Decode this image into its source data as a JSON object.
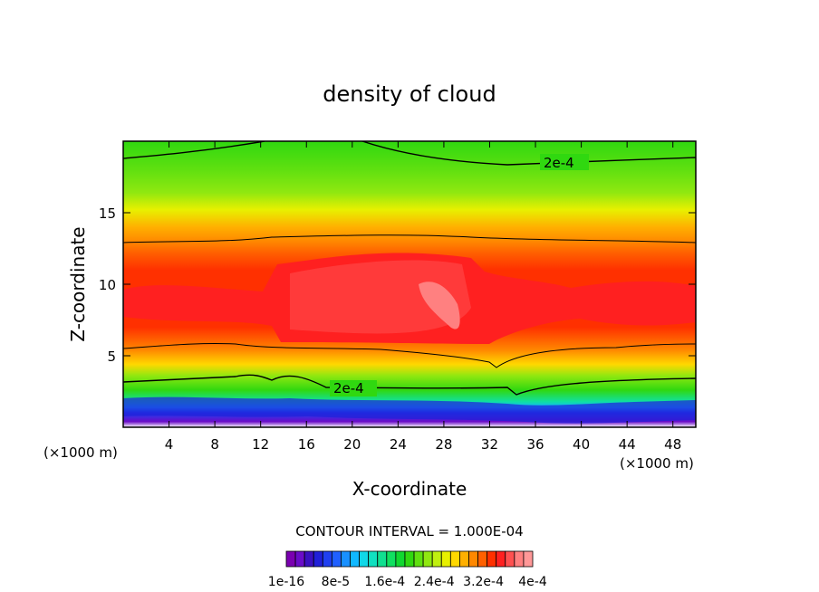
{
  "chart_data": {
    "type": "heatmap",
    "title": "density of cloud",
    "xlabel": "X-coordinate",
    "ylabel": "Z-coordinate",
    "x_unit": "(×1000 m)",
    "z_unit": "(×1000 m)",
    "xlim": [
      0,
      50
    ],
    "ylim": [
      0,
      20
    ],
    "x_ticks": [
      4,
      8,
      12,
      16,
      20,
      24,
      28,
      32,
      36,
      40,
      44,
      48
    ],
    "y_ticks": [
      5,
      10,
      15
    ],
    "contour_interval_text": "CONTOUR INTERVAL = 1.000E-04",
    "contour_line_label": "2e-4",
    "colorbar": {
      "colors": [
        "#7a00b0",
        "#6a0cc8",
        "#3a10c0",
        "#2020d8",
        "#2040f0",
        "#2060ff",
        "#1890ff",
        "#10b8ff",
        "#10d8e8",
        "#10e0c0",
        "#10e090",
        "#10e060",
        "#10d830",
        "#30d810",
        "#60e010",
        "#90e810",
        "#c0f010",
        "#e8f000",
        "#ffd800",
        "#ffb000",
        "#ff8800",
        "#ff6000",
        "#ff3000",
        "#ff2020",
        "#ff5050",
        "#ff8080",
        "#ff9898"
      ],
      "tick_labels": [
        "1e-16",
        "8e-5",
        "1.6e-4",
        "2.4e-4",
        "3.2e-4",
        "4e-4"
      ]
    }
  }
}
